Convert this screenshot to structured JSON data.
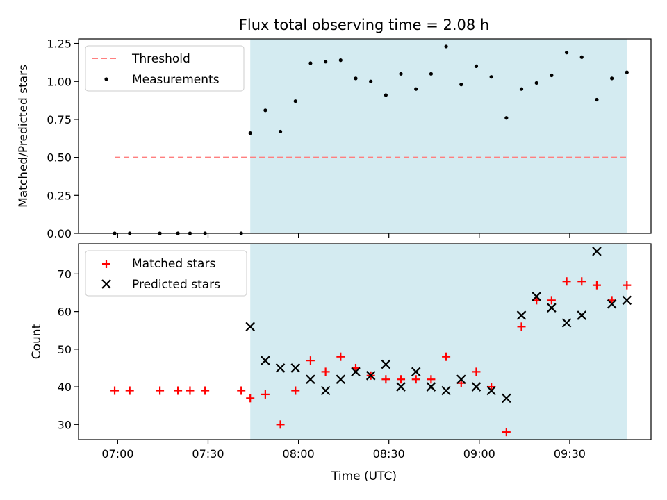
{
  "title": "Flux total observing time = 2.08 h",
  "xlabel": "Time (UTC)",
  "colors": {
    "observing_band": "#d4ebf1",
    "threshold": "#ff7f7f",
    "measurement": "#000000",
    "matched": "#ff0000",
    "predicted": "#000000"
  },
  "chart_data": [
    {
      "type": "scatter",
      "ylabel": "Matched/Predicted stars",
      "ylim": [
        0,
        1.28
      ],
      "yticks": [
        0.0,
        0.25,
        0.5,
        0.75,
        1.0,
        1.25
      ],
      "ytick_labels": [
        "0.00",
        "0.25",
        "0.50",
        "0.75",
        "1.00",
        "1.25"
      ],
      "legend": {
        "position": "top-left",
        "entries": [
          "Threshold",
          "Measurements"
        ]
      },
      "threshold": {
        "name": "Threshold",
        "value": 0.5,
        "x_range": [
          "06:59",
          "09:49"
        ]
      },
      "observing_window": [
        "07:44",
        "09:49"
      ],
      "series": [
        {
          "name": "Measurements",
          "marker": "dot",
          "x": [
            "06:59",
            "07:04",
            "07:14",
            "07:20",
            "07:24",
            "07:29",
            "07:41",
            "07:44",
            "07:49",
            "07:54",
            "07:59",
            "08:04",
            "08:09",
            "08:14",
            "08:19",
            "08:24",
            "08:29",
            "08:34",
            "08:39",
            "08:44",
            "08:49",
            "08:54",
            "08:59",
            "09:04",
            "09:09",
            "09:14",
            "09:19",
            "09:24",
            "09:29",
            "09:34",
            "09:39",
            "09:44",
            "09:49"
          ],
          "y": [
            0.0,
            0.0,
            0.0,
            0.0,
            0.0,
            0.0,
            0.0,
            0.66,
            0.81,
            0.67,
            0.87,
            1.12,
            1.13,
            1.14,
            1.02,
            1.0,
            0.91,
            1.05,
            0.95,
            1.05,
            1.23,
            0.98,
            1.1,
            1.03,
            0.76,
            0.95,
            0.99,
            1.04,
            1.19,
            1.16,
            0.88,
            1.02,
            1.06
          ]
        }
      ]
    },
    {
      "type": "scatter",
      "ylabel": "Count",
      "ylim": [
        26,
        78
      ],
      "yticks": [
        30,
        40,
        50,
        60,
        70
      ],
      "ytick_labels": [
        "30",
        "40",
        "50",
        "60",
        "70"
      ],
      "xticks": [
        "07:00",
        "07:30",
        "08:00",
        "08:30",
        "09:00",
        "09:30"
      ],
      "xlim": [
        "06:47",
        "09:57"
      ],
      "legend": {
        "position": "top-left",
        "entries": [
          "Matched stars",
          "Predicted stars"
        ]
      },
      "observing_window": [
        "07:44",
        "09:49"
      ],
      "series": [
        {
          "name": "Matched stars",
          "marker": "plus",
          "x": [
            "06:59",
            "07:04",
            "07:14",
            "07:20",
            "07:24",
            "07:29",
            "07:41",
            "07:44",
            "07:49",
            "07:54",
            "07:59",
            "08:04",
            "08:09",
            "08:14",
            "08:19",
            "08:24",
            "08:29",
            "08:34",
            "08:39",
            "08:44",
            "08:49",
            "08:54",
            "08:59",
            "09:04",
            "09:09",
            "09:14",
            "09:19",
            "09:24",
            "09:29",
            "09:34",
            "09:39",
            "09:44",
            "09:49"
          ],
          "y": [
            39,
            39,
            39,
            39,
            39,
            39,
            39,
            37,
            38,
            30,
            39,
            47,
            44,
            48,
            45,
            43,
            42,
            42,
            42,
            42,
            48,
            41,
            44,
            40,
            28,
            56,
            63,
            63,
            68,
            68,
            67,
            63,
            67
          ]
        },
        {
          "name": "Predicted stars",
          "marker": "x",
          "x": [
            "07:44",
            "07:49",
            "07:54",
            "07:59",
            "08:04",
            "08:09",
            "08:14",
            "08:19",
            "08:24",
            "08:29",
            "08:34",
            "08:39",
            "08:44",
            "08:49",
            "08:54",
            "08:59",
            "09:04",
            "09:09",
            "09:14",
            "09:19",
            "09:24",
            "09:29",
            "09:34",
            "09:39",
            "09:44",
            "09:49"
          ],
          "y": [
            56,
            47,
            45,
            45,
            42,
            39,
            42,
            44,
            43,
            46,
            40,
            44,
            40,
            39,
            42,
            40,
            39,
            37,
            59,
            64,
            61,
            57,
            59,
            76,
            62,
            63
          ]
        }
      ]
    }
  ]
}
